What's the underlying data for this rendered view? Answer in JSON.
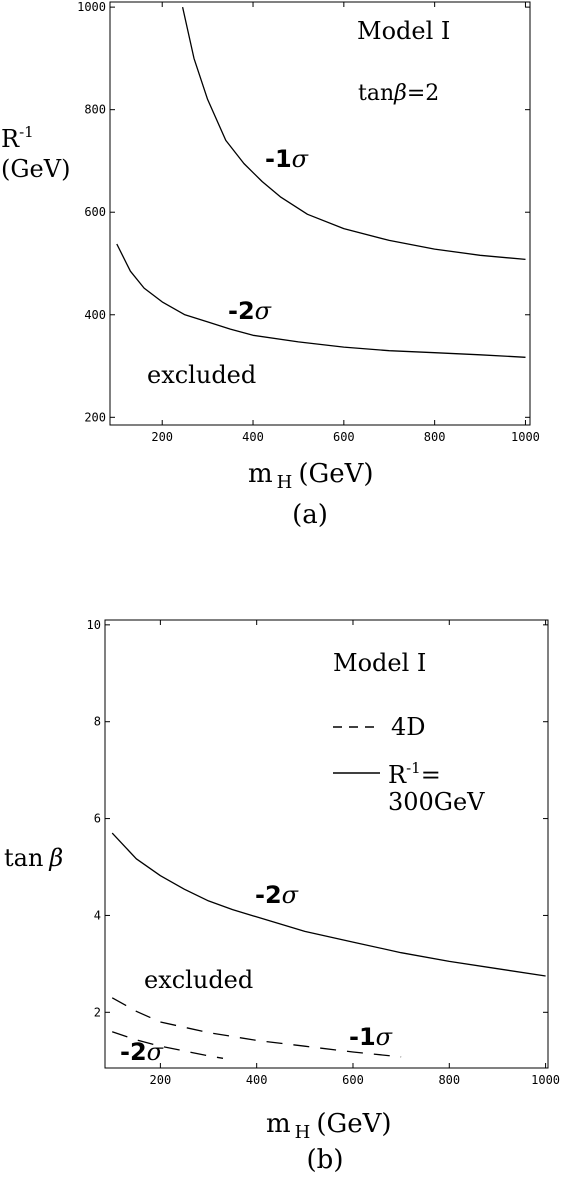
{
  "chart_data": [
    {
      "type": "line",
      "caption": "(a)",
      "xlabel": {
        "main": "m",
        "sub": "H",
        "unit": "(GeV)"
      },
      "ylabel": {
        "main": "R",
        "sup": "-1",
        "unit": "(GeV)"
      },
      "xlim": [
        85,
        1010
      ],
      "ylim": [
        185,
        1010
      ],
      "xticks": [
        200,
        400,
        600,
        800,
        1000
      ],
      "yticks": [
        200,
        400,
        600,
        800,
        1000
      ],
      "annotations": {
        "model": "Model I",
        "tanbeta_prefix": "tan",
        "tanbeta_sym": "β",
        "tanbeta_val": "=2",
        "sigma1_prefix": "-1",
        "sigma2_prefix": "-2",
        "sigma_sym": "σ",
        "excluded": "excluded"
      },
      "series": [
        {
          "style": "solid",
          "label": "-1σ",
          "x": [
            245,
            270,
            300,
            340,
            380,
            420,
            460,
            520,
            600,
            700,
            800,
            900,
            1000
          ],
          "y": [
            1000,
            900,
            820,
            740,
            695,
            660,
            630,
            596,
            568,
            545,
            528,
            516,
            508
          ]
        },
        {
          "style": "solid",
          "label": "-2σ",
          "x": [
            100,
            130,
            160,
            200,
            250,
            300,
            350,
            400,
            500,
            600,
            700,
            800,
            900,
            1000
          ],
          "y": [
            538,
            485,
            452,
            425,
            400,
            386,
            372,
            360,
            347,
            337,
            330,
            326,
            322,
            317
          ]
        }
      ]
    },
    {
      "type": "line",
      "caption": "(b)",
      "xlabel": {
        "main": "m",
        "sub": "H",
        "unit": "(GeV)"
      },
      "ylabel": {
        "main": "tan",
        "sym": "β"
      },
      "xlim": [
        85,
        1005
      ],
      "ylim": [
        0.85,
        10.1
      ],
      "xticks": [
        200,
        400,
        600,
        800,
        1000
      ],
      "yticks": [
        2,
        4,
        6,
        8,
        10
      ],
      "annotations": {
        "model": "Model I",
        "legend_4d": "4D",
        "legend_r_main": "R",
        "legend_r_sup": "-1",
        "legend_r_eq": "=",
        "legend_r_value": "300GeV",
        "sigma1_prefix": "-1",
        "sigma2_prefix": "-2",
        "sigma_sym": "σ",
        "excluded": "excluded"
      },
      "series": [
        {
          "style": "solid",
          "label": "-2σ",
          "x": [
            100,
            150,
            200,
            250,
            300,
            350,
            400,
            500,
            600,
            700,
            800,
            900,
            1000
          ],
          "y": [
            5.7,
            5.17,
            4.82,
            4.54,
            4.3,
            4.12,
            3.97,
            3.67,
            3.45,
            3.23,
            3.05,
            2.9,
            2.75
          ]
        },
        {
          "style": "dashed",
          "label": "-1σ",
          "x": [
            100,
            150,
            200,
            300,
            400,
            500,
            600,
            700
          ],
          "y": [
            2.3,
            2.02,
            1.8,
            1.58,
            1.42,
            1.3,
            1.18,
            1.08
          ]
        },
        {
          "style": "dashed",
          "label": "-2σ",
          "x": [
            100,
            150,
            200,
            250,
            300,
            330
          ],
          "y": [
            1.6,
            1.43,
            1.3,
            1.2,
            1.1,
            1.05
          ]
        }
      ]
    }
  ]
}
